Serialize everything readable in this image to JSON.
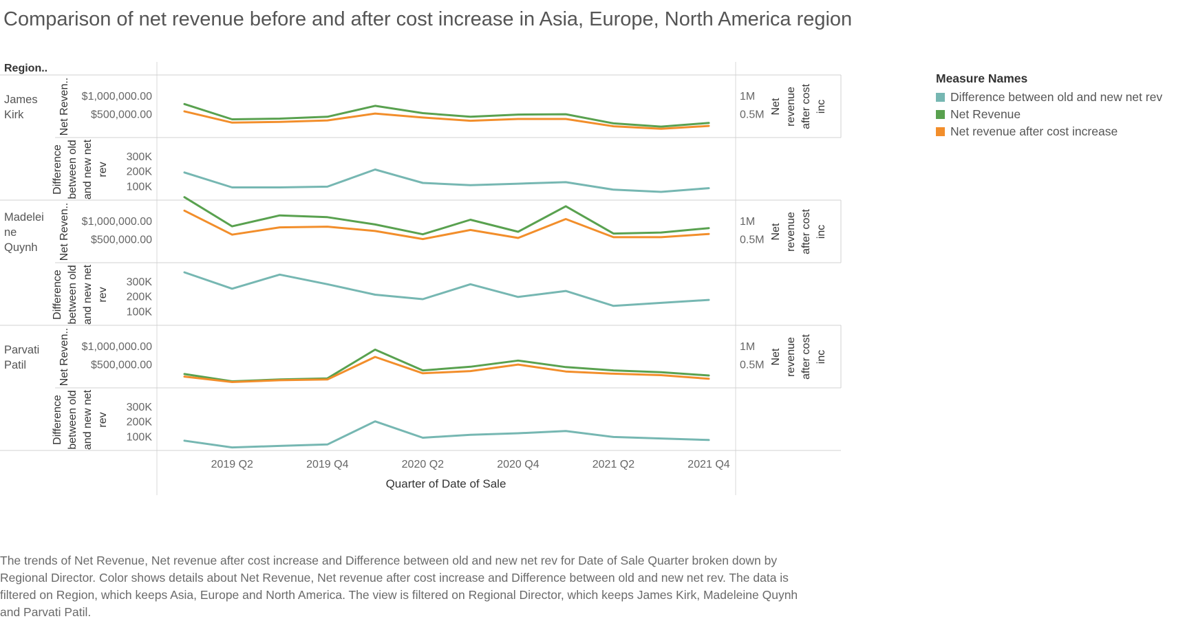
{
  "title": "Comparison of net revenue before and after cost increase in Asia, Europe, North America region",
  "caption": "The trends of Net Revenue, Net revenue after cost increase and Difference between old and new net rev for Date of Sale Quarter broken down by Regional Director.  Color shows details about Net Revenue, Net revenue after cost increase and Difference between old and new net rev. The data is filtered on Region, which keeps Asia, Europe and North America. The view is filtered on Regional Director, which keeps James Kirk, Madeleine Quynh and Parvati Patil.",
  "legend": {
    "title": "Measure Names",
    "items": [
      {
        "label": "Difference between old and new net rev",
        "color": "#76b7b2"
      },
      {
        "label": "Net Revenue",
        "color": "#59a14f"
      },
      {
        "label": "Net revenue after cost increase",
        "color": "#f28e2b"
      }
    ]
  },
  "chart_data": {
    "type": "line",
    "row_header": "Region..",
    "xlabel": "Quarter of Date of Sale",
    "x": [
      "2019 Q1",
      "2019 Q2",
      "2019 Q3",
      "2019 Q4",
      "2020 Q1",
      "2020 Q2",
      "2020 Q3",
      "2020 Q4",
      "2021 Q1",
      "2021 Q2",
      "2021 Q3",
      "2021 Q4"
    ],
    "x_tick_labels": [
      "2019 Q2",
      "2019 Q4",
      "2020 Q2",
      "2020 Q4",
      "2021 Q2",
      "2021 Q4"
    ],
    "revenue_axis": {
      "label": "Net Reven..",
      "ticks": [
        "$1,000,000.00",
        "$500,000.00"
      ],
      "tick_values": [
        1000000,
        500000
      ],
      "ylim": [
        -150000,
        1550000
      ]
    },
    "revenue_right_axis": {
      "label": "Net revenue after cost inc",
      "ticks": [
        "1M",
        "0.5M"
      ],
      "tick_values": [
        1000000,
        500000
      ]
    },
    "difference_axis": {
      "label": "Difference between old and new net rev",
      "ticks": [
        "300K",
        "200K",
        "100K"
      ],
      "tick_values": [
        300000,
        200000,
        100000
      ],
      "ylim": [
        0,
        420000
      ]
    },
    "panels": [
      {
        "director": "James Kirk",
        "series": [
          {
            "name": "Net Revenue",
            "color": "#59a14f",
            "values": [
              770000,
              350000,
              370000,
              420000,
              720000,
              520000,
              420000,
              480000,
              490000,
              240000,
              150000,
              250000
            ]
          },
          {
            "name": "Net revenue after cost increase",
            "color": "#f28e2b",
            "values": [
              570000,
              260000,
              280000,
              320000,
              510000,
              400000,
              310000,
              360000,
              360000,
              160000,
              90000,
              170000
            ]
          },
          {
            "name": "Difference between old and new net rev",
            "color": "#76b7b2",
            "values": [
              190000,
              90000,
              90000,
              95000,
              210000,
              120000,
              105000,
              115000,
              125000,
              75000,
              60000,
              85000
            ]
          }
        ]
      },
      {
        "director": "Madeleine Quynh",
        "series": [
          {
            "name": "Net Revenue",
            "color": "#59a14f",
            "values": [
              1650000,
              850000,
              1150000,
              1100000,
              900000,
              630000,
              1030000,
              700000,
              1400000,
              650000,
              680000,
              800000
            ]
          },
          {
            "name": "Net revenue after cost increase",
            "color": "#f28e2b",
            "values": [
              1280000,
              620000,
              820000,
              840000,
              720000,
              500000,
              750000,
              530000,
              1050000,
              550000,
              550000,
              640000
            ]
          },
          {
            "name": "Difference between old and new net rev",
            "color": "#76b7b2",
            "values": [
              360000,
              250000,
              345000,
              280000,
              210000,
              180000,
              280000,
              195000,
              235000,
              135000,
              155000,
              175000
            ]
          }
        ]
      },
      {
        "director": "Parvati Patil",
        "series": [
          {
            "name": "Net Revenue",
            "color": "#59a14f",
            "values": [
              230000,
              30000,
              80000,
              110000,
              900000,
              330000,
              430000,
              600000,
              420000,
              330000,
              280000,
              190000
            ]
          },
          {
            "name": "Net revenue after cost increase",
            "color": "#f28e2b",
            "values": [
              160000,
              10000,
              60000,
              80000,
              700000,
              250000,
              310000,
              490000,
              300000,
              240000,
              200000,
              100000
            ]
          },
          {
            "name": "Difference between old and new net rev",
            "color": "#76b7b2",
            "values": [
              70000,
              25000,
              35000,
              45000,
              200000,
              90000,
              110000,
              120000,
              135000,
              95000,
              85000,
              75000
            ]
          }
        ]
      }
    ]
  }
}
